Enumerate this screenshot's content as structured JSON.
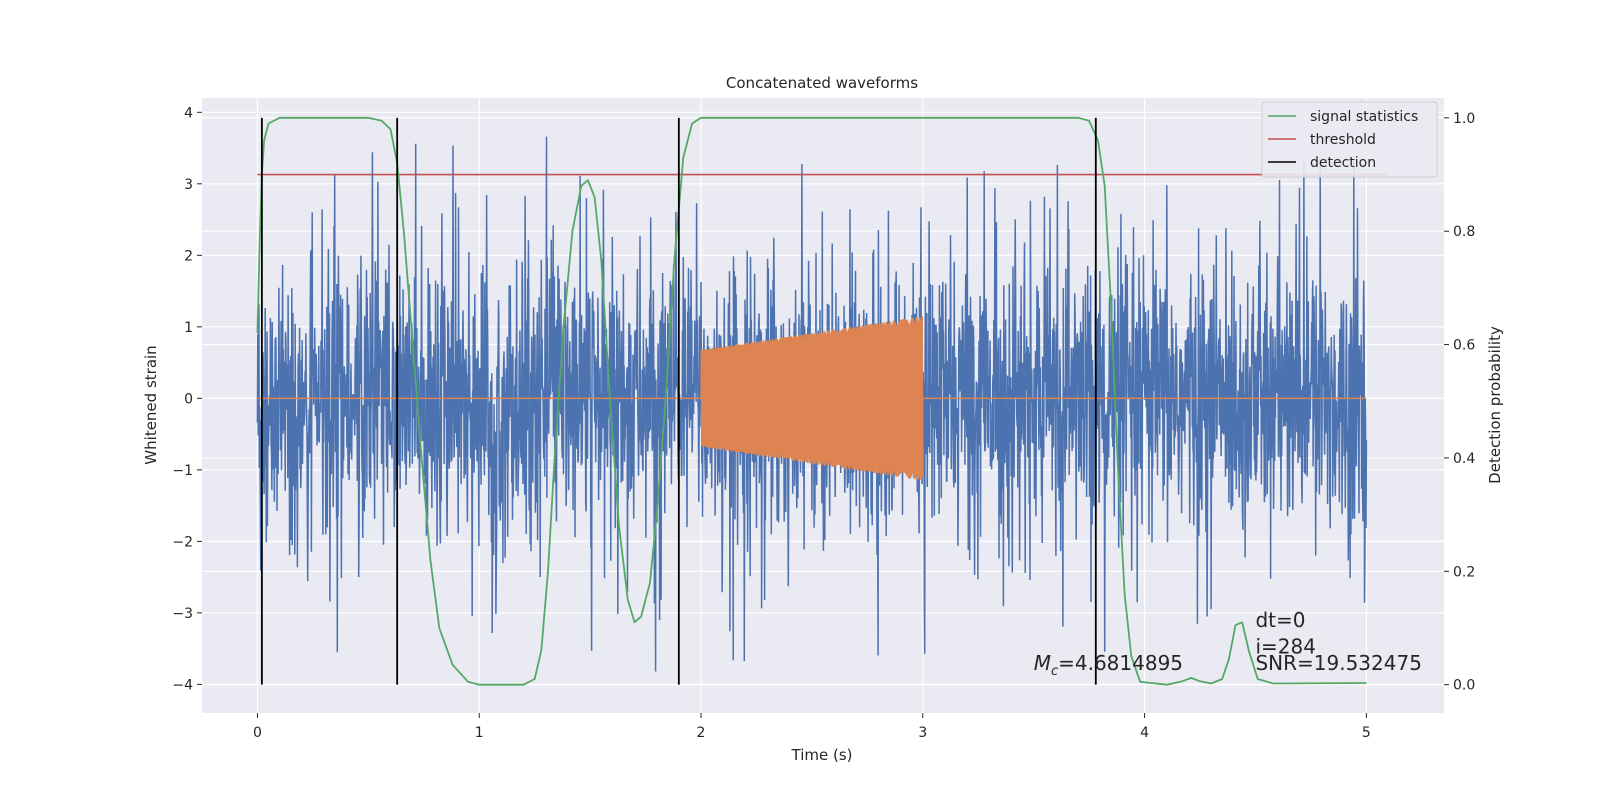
{
  "chart_data": {
    "type": "line",
    "title": "Concatenated waveforms",
    "xlabel": "Time (s)",
    "ylabel": "Whitened strain",
    "y2label": "Detection probability",
    "xlim": [
      -0.25,
      5.35
    ],
    "ylim": [
      -4.4,
      4.2
    ],
    "y2lim": [
      -0.05,
      1.035
    ],
    "xticks": [
      0,
      1,
      2,
      3,
      4,
      5
    ],
    "yticks": [
      -4,
      -3,
      -2,
      -1,
      0,
      1,
      2,
      3,
      4
    ],
    "y2ticks": [
      0.0,
      0.2,
      0.4,
      0.6,
      0.8,
      1.0
    ],
    "xtick_labels": [
      "0",
      "1",
      "2",
      "3",
      "4",
      "5"
    ],
    "ytick_labels": [
      "−4",
      "−3",
      "−2",
      "−1",
      "0",
      "1",
      "2",
      "3",
      "4"
    ],
    "y2tick_labels": [
      "0.0",
      "0.2",
      "0.4",
      "0.6",
      "0.8",
      "1.0"
    ],
    "grid": true,
    "legend_position": "top-right",
    "legend": [
      {
        "label": "signal statistics",
        "color": "#55a868"
      },
      {
        "label": "threshold",
        "color": "#c44e52"
      },
      {
        "label": "detection",
        "color": "#000000"
      }
    ],
    "series": [
      {
        "color": "#4c72b0",
        "axis": "left",
        "kind": "noise",
        "x_range": [
          0,
          5
        ],
        "typical_amplitude": 1.0,
        "peak_amplitude": 3.9
      },
      {
        "color": "#dd8452",
        "axis": "left",
        "kind": "chirp",
        "x_range": [
          2,
          3
        ],
        "amplitude_start": 0.68,
        "amplitude_end": 1.15,
        "baseline": 0
      },
      {
        "name": "signal statistics",
        "color": "#55a868",
        "axis": "right",
        "points": [
          [
            0.0,
            0.62
          ],
          [
            0.01,
            0.78
          ],
          [
            0.02,
            0.9
          ],
          [
            0.03,
            0.96
          ],
          [
            0.05,
            0.99
          ],
          [
            0.1,
            1.0
          ],
          [
            0.5,
            1.0
          ],
          [
            0.56,
            0.995
          ],
          [
            0.6,
            0.98
          ],
          [
            0.63,
            0.92
          ],
          [
            0.66,
            0.8
          ],
          [
            0.7,
            0.6
          ],
          [
            0.74,
            0.4
          ],
          [
            0.78,
            0.22
          ],
          [
            0.82,
            0.1
          ],
          [
            0.88,
            0.035
          ],
          [
            0.95,
            0.005
          ],
          [
            1.0,
            0.0
          ],
          [
            1.2,
            0.0
          ],
          [
            1.25,
            0.01
          ],
          [
            1.28,
            0.06
          ],
          [
            1.31,
            0.2
          ],
          [
            1.34,
            0.4
          ],
          [
            1.38,
            0.63
          ],
          [
            1.42,
            0.8
          ],
          [
            1.46,
            0.88
          ],
          [
            1.49,
            0.89
          ],
          [
            1.52,
            0.86
          ],
          [
            1.55,
            0.75
          ],
          [
            1.59,
            0.5
          ],
          [
            1.63,
            0.28
          ],
          [
            1.67,
            0.15
          ],
          [
            1.7,
            0.11
          ],
          [
            1.73,
            0.12
          ],
          [
            1.77,
            0.18
          ],
          [
            1.8,
            0.3
          ],
          [
            1.84,
            0.5
          ],
          [
            1.88,
            0.75
          ],
          [
            1.92,
            0.93
          ],
          [
            1.96,
            0.99
          ],
          [
            2.0,
            1.0
          ],
          [
            3.7,
            1.0
          ],
          [
            3.75,
            0.995
          ],
          [
            3.79,
            0.96
          ],
          [
            3.82,
            0.88
          ],
          [
            3.85,
            0.66
          ],
          [
            3.88,
            0.38
          ],
          [
            3.91,
            0.16
          ],
          [
            3.94,
            0.05
          ],
          [
            3.98,
            0.005
          ],
          [
            4.1,
            0.0
          ],
          [
            4.17,
            0.006
          ],
          [
            4.21,
            0.012
          ],
          [
            4.25,
            0.006
          ],
          [
            4.3,
            0.002
          ],
          [
            4.35,
            0.01
          ],
          [
            4.38,
            0.045
          ],
          [
            4.41,
            0.105
          ],
          [
            4.44,
            0.11
          ],
          [
            4.47,
            0.06
          ],
          [
            4.51,
            0.01
          ],
          [
            4.58,
            0.002
          ],
          [
            5.0,
            0.003
          ]
        ]
      },
      {
        "name": "threshold",
        "color": "#c44e52",
        "axis": "right",
        "points": [
          [
            0.0,
            0.9
          ],
          [
            5.1,
            0.9
          ]
        ]
      }
    ],
    "detections": [
      0.02,
      0.63,
      1.9,
      3.78
    ],
    "annotations": [
      {
        "text_prefix": "M",
        "text_sub": "c",
        "text_rest": "=4.6814895",
        "x": 3.5,
        "y": -3.8
      },
      {
        "text": "dt=0",
        "x": 4.5,
        "y": -3.2
      },
      {
        "text": "i=284",
        "x": 4.5,
        "y": -3.57
      },
      {
        "text": "SNR=19.532475",
        "x": 4.5,
        "y": -3.8
      }
    ]
  }
}
